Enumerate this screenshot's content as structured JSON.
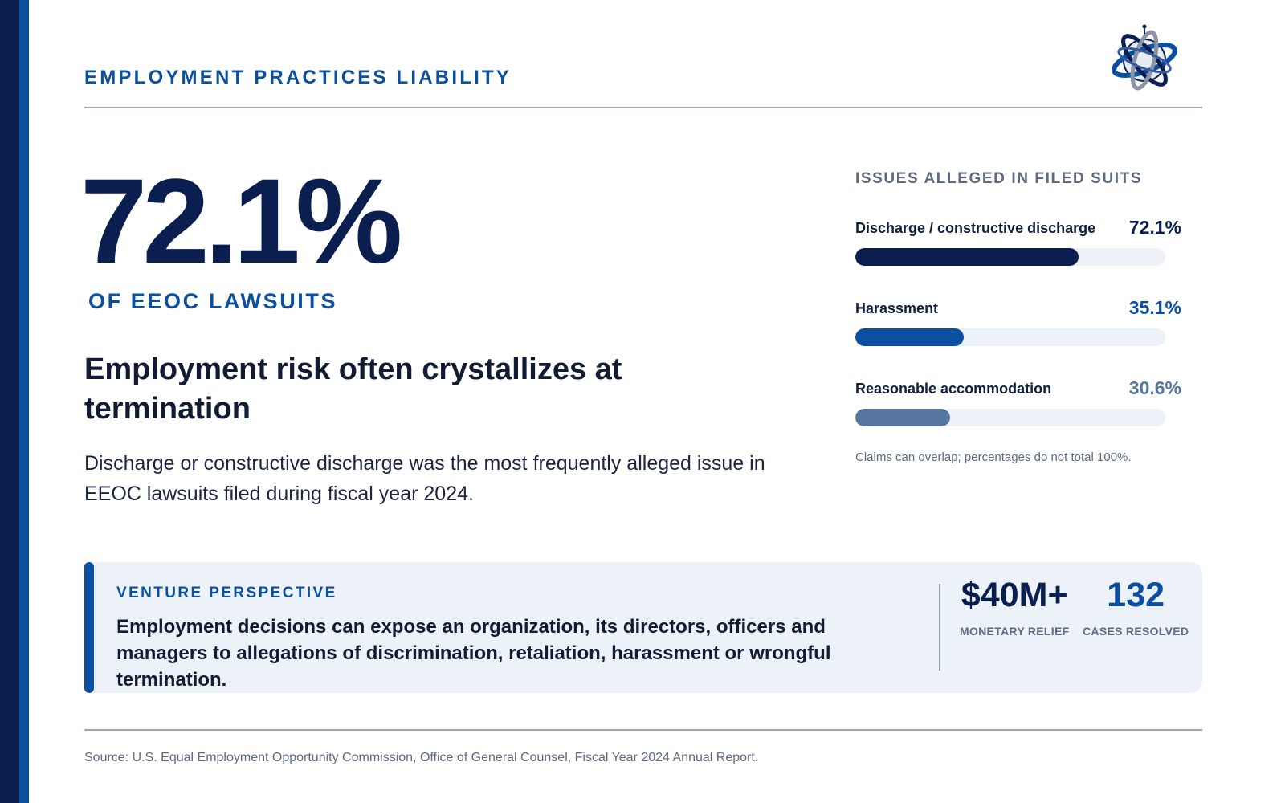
{
  "header": {
    "eyebrow": "EMPLOYMENT PRACTICES LIABILITY",
    "logo_icon": "globe-rings-logo-icon"
  },
  "hero": {
    "stat": "72.1%",
    "stat_sub": "OF EEOC LAWSUITS",
    "headline": "Employment risk often crystallizes at termination",
    "body": "Discharge or constructive discharge was the most frequently alleged issue in EEOC lawsuits filed during fiscal year 2024."
  },
  "issues": {
    "title": "ISSUES ALLEGED IN FILED SUITS",
    "items": [
      {
        "label": "Discharge / constructive discharge",
        "pct_text": "72.1%",
        "value": 72.1,
        "color": "#0a1f4f",
        "text_color": "#0a1f4f"
      },
      {
        "label": "Harassment",
        "pct_text": "35.1%",
        "value": 35.1,
        "color": "#0b4fa0",
        "text_color": "#0b4fa0"
      },
      {
        "label": "Reasonable accommodation",
        "pct_text": "30.6%",
        "value": 30.6,
        "color": "#5676a0",
        "text_color": "#5676a0"
      }
    ],
    "note": "Claims can overlap; percentages do not total 100%."
  },
  "venture": {
    "title": "VENTURE PERSPECTIVE",
    "text": "Employment decisions can expose an organization, its directors, officers and managers to allegations of discrimination, retaliation, harassment or wrongful termination.",
    "stats": [
      {
        "value": "$40M+",
        "label": "MONETARY RELIEF",
        "color": "#0a1f4f"
      },
      {
        "value": "132",
        "label": "CASES RESOLVED",
        "color": "#0b4fa0"
      }
    ]
  },
  "footer": {
    "source": "Source: U.S. Equal Employment Opportunity Commission, Office of General Counsel, Fiscal Year 2024 Annual Report."
  },
  "colors": {
    "navy": "#0a1f4f",
    "brand_blue": "#0b4fa0",
    "muted": "#5d6a7f",
    "panel_bg": "#edf2f9"
  }
}
